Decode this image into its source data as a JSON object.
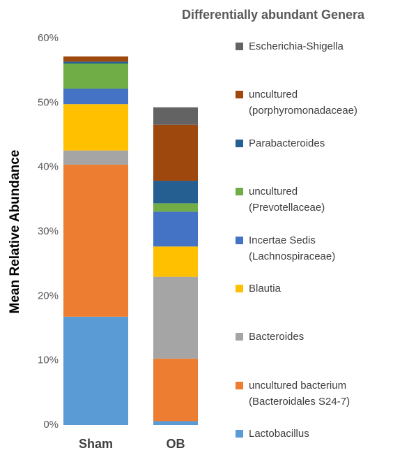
{
  "chart_data": {
    "type": "stacked_bar",
    "title": "Differentially abundant Genera",
    "ylabel": "Mean Relative Abundance",
    "categories": [
      "Sham",
      "OB"
    ],
    "ylim": [
      0,
      60
    ],
    "yticks": [
      {
        "value": 0,
        "label": "0%"
      },
      {
        "value": 10,
        "label": "10%"
      },
      {
        "value": 20,
        "label": "20%"
      },
      {
        "value": 30,
        "label": "30%"
      },
      {
        "value": 40,
        "label": "40%"
      },
      {
        "value": 50,
        "label": "50%"
      },
      {
        "value": 60,
        "label": "60%"
      }
    ],
    "grid": false,
    "legend": "right",
    "series": [
      {
        "name": "Lactobacillus",
        "color": "#5b9bd5",
        "values": [
          16.8,
          0.6
        ]
      },
      {
        "name": "uncultured bacterium\n(Bacteroidales S24-7)",
        "color": "#ed7d31",
        "values": [
          23.6,
          9.7
        ]
      },
      {
        "name": "Bacteroides",
        "color": "#a5a5a5",
        "values": [
          2.2,
          12.7
        ]
      },
      {
        "name": "Blautia",
        "color": "#ffc000",
        "values": [
          7.2,
          4.7
        ]
      },
      {
        "name": "Incertae Sedis\n(Lachnospiraceae)",
        "color": "#4472c4",
        "values": [
          2.4,
          5.4
        ]
      },
      {
        "name": "uncultured\n(Prevotellaceae)",
        "color": "#70ad47",
        "values": [
          3.9,
          1.3
        ]
      },
      {
        "name": "Parabacteroides",
        "color": "#255e91",
        "values": [
          0.3,
          3.5
        ]
      },
      {
        "name": "uncultured\n(porphyromonadaceae)",
        "color": "#9e480e",
        "values": [
          0.8,
          8.7
        ]
      },
      {
        "name": "Escherichia-Shigella",
        "color": "#636363",
        "values": [
          0,
          2.7
        ]
      }
    ]
  }
}
